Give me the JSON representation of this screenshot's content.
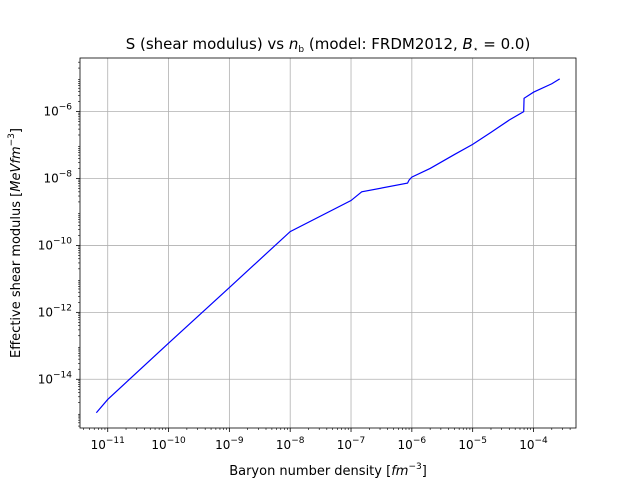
{
  "chart_data": {
    "type": "line",
    "title": {
      "main": "S (shear modulus) vs ",
      "var_base": "n",
      "var_sub": "b",
      "paren_open": " (model: FRDM2012, ",
      "param_base": "B",
      "param_sub": "⋆",
      "param_rest": " = 0.0)"
    },
    "xlabel": {
      "text": "Baryon number density [",
      "unit_base": "fm",
      "unit_exp": "−3",
      "close": "]"
    },
    "ylabel": {
      "text": "Effective shear modulus [",
      "unit_base": "MeVfm",
      "unit_exp": "−3",
      "close": "]"
    },
    "x_scale": "log",
    "y_scale": "log",
    "xlim": [
      3.5e-12,
      0.0005
    ],
    "ylim": [
      3.5e-16,
      4e-05
    ],
    "grid": true,
    "series_color": "#0000ff",
    "x_ticks": [
      {
        "value": 1e-11,
        "base": "10",
        "exp": "−11"
      },
      {
        "value": 1e-10,
        "base": "10",
        "exp": "−10"
      },
      {
        "value": 1e-09,
        "base": "10",
        "exp": "−9"
      },
      {
        "value": 1e-08,
        "base": "10",
        "exp": "−8"
      },
      {
        "value": 1e-07,
        "base": "10",
        "exp": "−7"
      },
      {
        "value": 1e-06,
        "base": "10",
        "exp": "−6"
      },
      {
        "value": 1e-05,
        "base": "10",
        "exp": "−5"
      },
      {
        "value": 0.0001,
        "base": "10",
        "exp": "−4"
      }
    ],
    "y_ticks": [
      {
        "value": 1e-14,
        "base": "10",
        "exp": "−14"
      },
      {
        "value": 1e-12,
        "base": "10",
        "exp": "−12"
      },
      {
        "value": 1e-10,
        "base": "10",
        "exp": "−10"
      },
      {
        "value": 1e-08,
        "base": "10",
        "exp": "−8"
      },
      {
        "value": 1e-06,
        "base": "10",
        "exp": "−6"
      }
    ],
    "series": [
      {
        "x": [
          6.5e-12,
          1e-11,
          1e-10,
          1e-09,
          1e-08,
          1e-07,
          1.5e-07,
          8.5e-07,
          9e-07,
          1e-06,
          2e-06,
          5e-06,
          1e-05,
          2e-05,
          4e-05,
          6.9e-05,
          7e-05,
          0.0001,
          0.0002,
          0.00027
        ],
        "y": [
          1e-15,
          2.5e-15,
          1.2e-13,
          5.5e-12,
          2.6e-10,
          2.2e-09,
          4e-09,
          7.3e-09,
          9e-09,
          1.1e-08,
          2e-08,
          5.2e-08,
          1.05e-07,
          2.4e-07,
          5.6e-07,
          1e-06,
          2.5e-06,
          3.8e-06,
          6.8e-06,
          9.5e-06
        ]
      }
    ]
  }
}
